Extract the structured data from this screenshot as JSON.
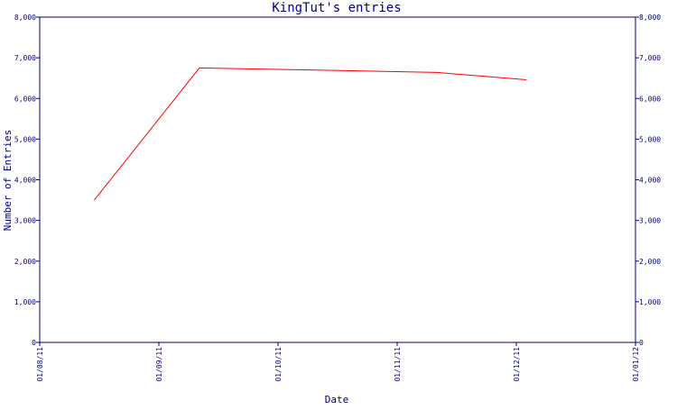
{
  "chart_data": {
    "type": "line",
    "title": "KingTut's entries",
    "xlabel": "Date",
    "ylabel": "Number of Entries",
    "x_ticks": [
      "01/08/11",
      "01/09/11",
      "01/10/11",
      "01/11/11",
      "01/12/11",
      "01/01/12"
    ],
    "xlim": [
      "2011-08-01",
      "2012-01-01"
    ],
    "ylim": [
      0,
      8000
    ],
    "y_ticks": [
      "0",
      "1,000",
      "2,000",
      "3,000",
      "4,000",
      "5,000",
      "6,000",
      "7,000",
      "8,000"
    ],
    "y_tick_values": [
      0,
      1000,
      2000,
      3000,
      4000,
      5000,
      6000,
      7000,
      8000
    ],
    "series": [
      {
        "color": "#ff0000",
        "points": [
          {
            "x": "2011-08-15",
            "y": 3500
          },
          {
            "x": "2011-09-11",
            "y": 6750
          },
          {
            "x": "2011-10-11",
            "y": 6700
          },
          {
            "x": "2011-11-11",
            "y": 6640
          },
          {
            "x": "2011-12-04",
            "y": 6460
          }
        ]
      }
    ],
    "grid": false,
    "axes_color": "#000080"
  }
}
